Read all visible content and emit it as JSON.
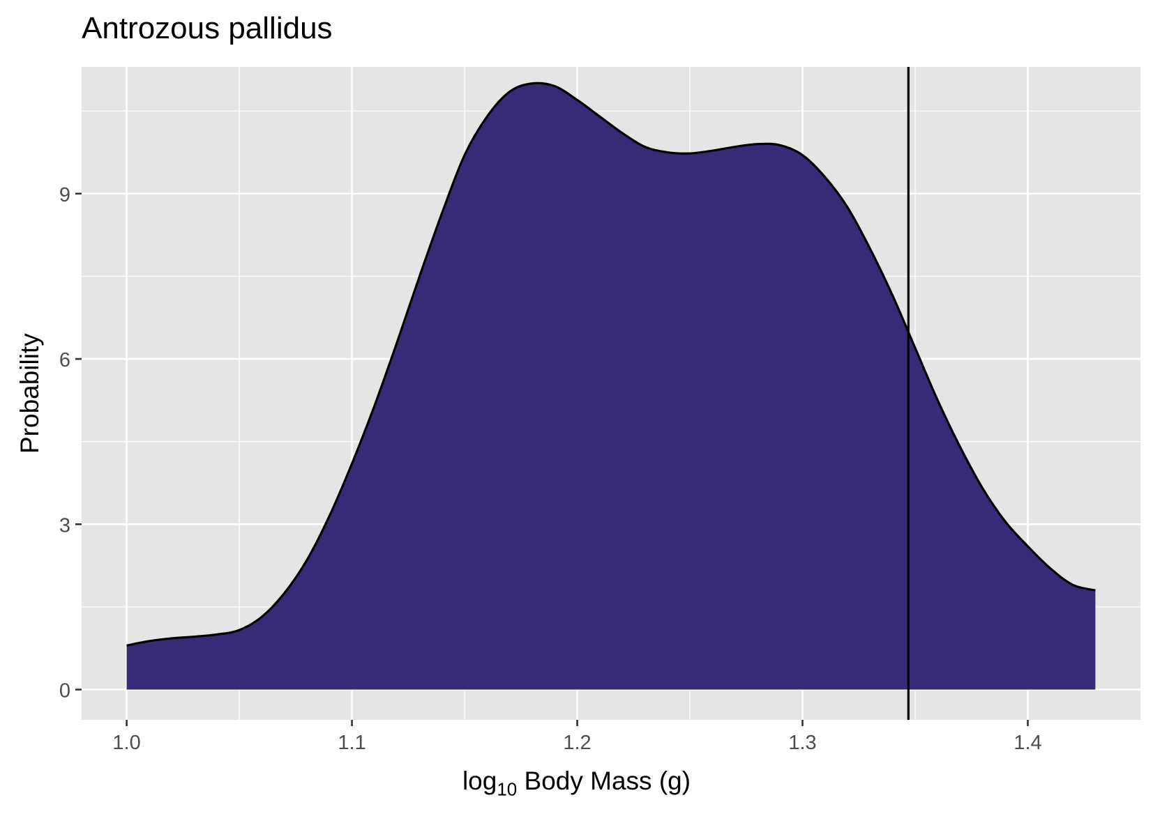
{
  "chart_data": {
    "type": "area",
    "title": "Antrozous pallidus",
    "xlabel": {
      "prefix": "log",
      "subscript": "10",
      "suffix": "Body Mass",
      "unit": "(g)"
    },
    "ylabel": "Probability",
    "xlim": [
      0.98,
      1.45
    ],
    "ylim": [
      -0.55,
      11.3
    ],
    "x_ticks": [
      1.0,
      1.1,
      1.2,
      1.3,
      1.4
    ],
    "x_tick_labels": [
      "1.0",
      "1.1",
      "1.2",
      "1.3",
      "1.4"
    ],
    "y_ticks": [
      0,
      3,
      6,
      9
    ],
    "y_tick_labels": [
      "0",
      "3",
      "6",
      "9"
    ],
    "grid": true,
    "fill_color": "#372a77",
    "line_color": "#000000",
    "panel_color": "#e5e5e5",
    "vline_x": 1.347,
    "density": {
      "x": [
        1.0,
        1.01,
        1.02,
        1.03,
        1.04,
        1.05,
        1.06,
        1.07,
        1.08,
        1.09,
        1.1,
        1.11,
        1.12,
        1.13,
        1.14,
        1.15,
        1.16,
        1.17,
        1.18,
        1.19,
        1.2,
        1.21,
        1.22,
        1.23,
        1.24,
        1.25,
        1.26,
        1.27,
        1.28,
        1.29,
        1.3,
        1.31,
        1.32,
        1.33,
        1.34,
        1.35,
        1.36,
        1.37,
        1.38,
        1.39,
        1.4,
        1.41,
        1.42,
        1.43
      ],
      "y": [
        0.8,
        0.88,
        0.93,
        0.96,
        1.0,
        1.08,
        1.32,
        1.75,
        2.35,
        3.15,
        4.1,
        5.15,
        6.3,
        7.5,
        8.65,
        9.7,
        10.4,
        10.85,
        11.0,
        10.95,
        10.7,
        10.4,
        10.1,
        9.85,
        9.75,
        9.73,
        9.78,
        9.85,
        9.9,
        9.88,
        9.7,
        9.3,
        8.75,
        8.0,
        7.15,
        6.2,
        5.25,
        4.4,
        3.65,
        3.05,
        2.6,
        2.2,
        1.9,
        1.8
      ]
    }
  }
}
